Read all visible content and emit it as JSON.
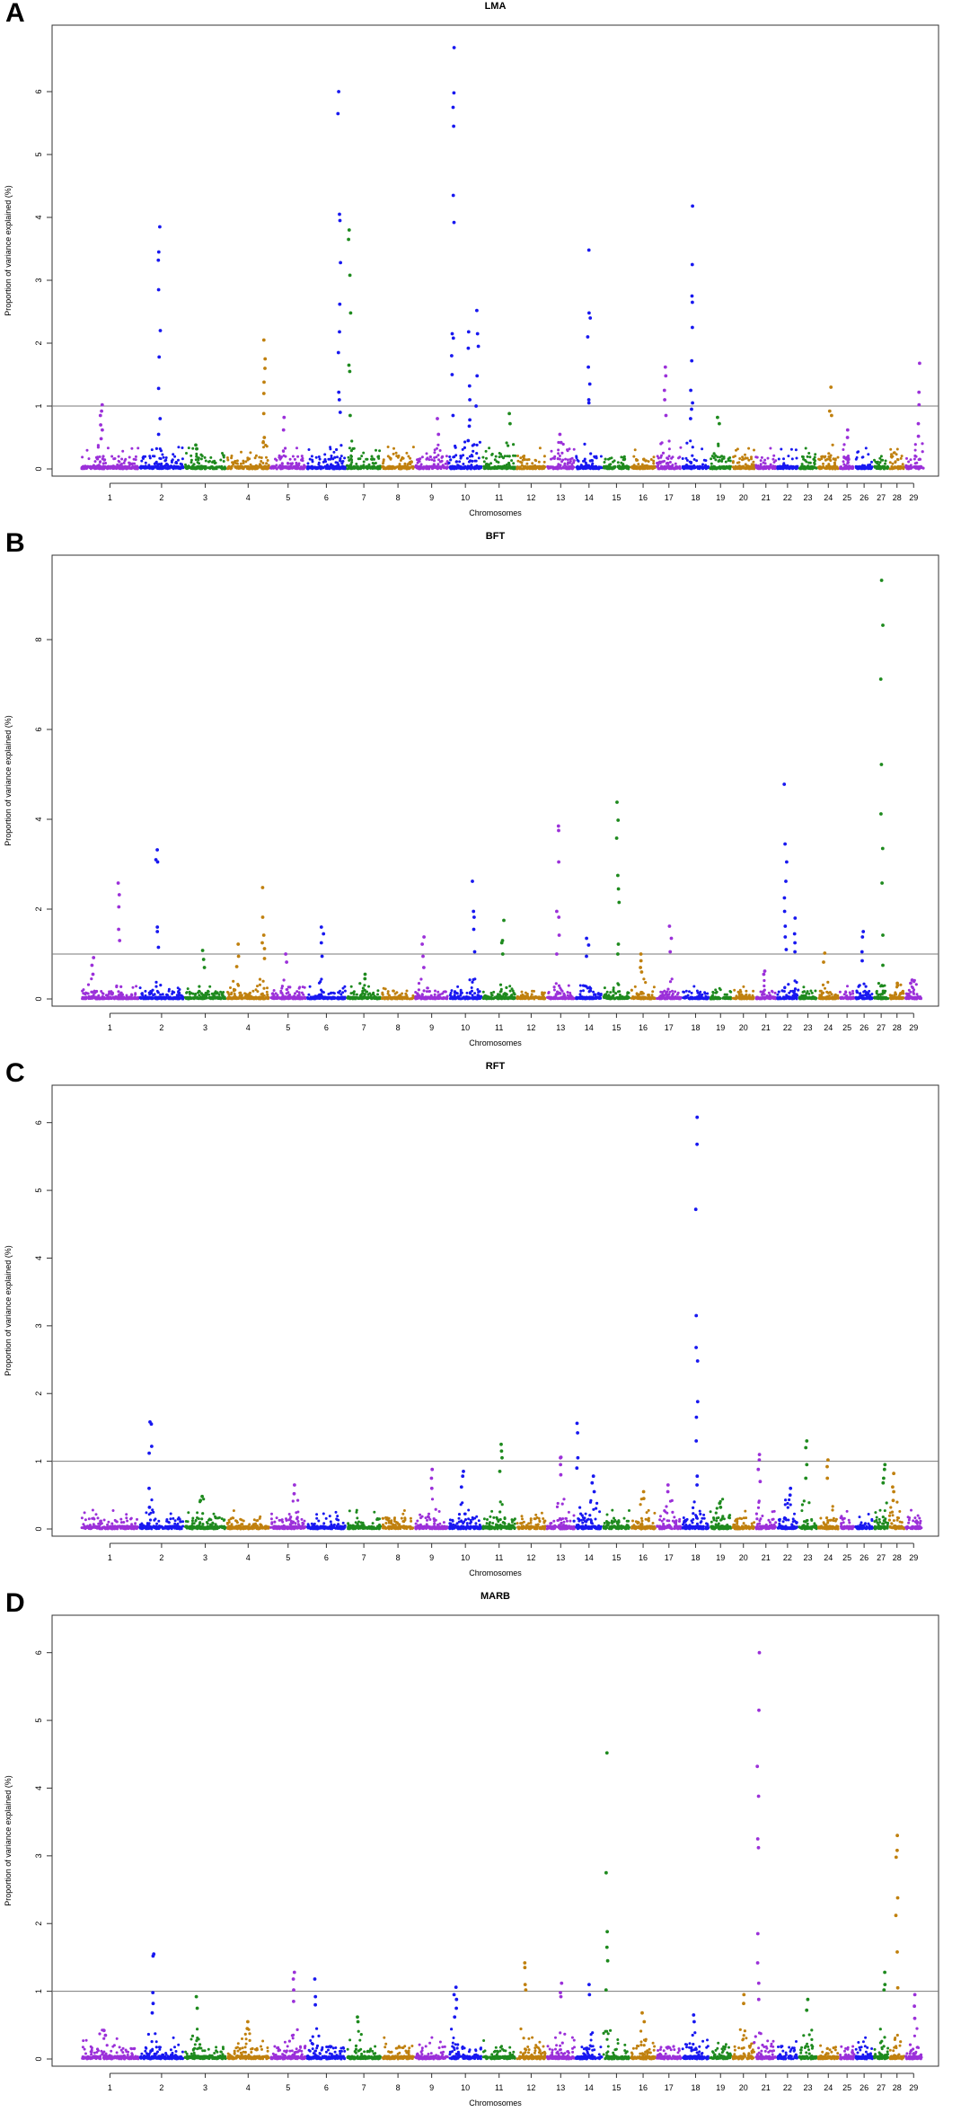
{
  "chart_data": [
    {
      "panel": "A",
      "type": "scatter",
      "title": "LMA",
      "xlabel": "Chromosomes",
      "ylabel": "Proportion of variance explained (%)",
      "ylim": [
        0,
        7
      ],
      "yticks": [
        0,
        1,
        2,
        3,
        4,
        5,
        6
      ],
      "threshold": 1,
      "chromosomes": [
        "1",
        "2",
        "3",
        "4",
        "5",
        "6",
        "7",
        "8",
        "9",
        "10",
        "11",
        "12",
        "13",
        "14",
        "15",
        "16",
        "17",
        "18",
        "19",
        "20",
        "21",
        "22",
        "23",
        "24",
        "25",
        "26",
        "27",
        "28",
        "29"
      ],
      "chromosome_sizes": [
        7.0,
        5.4,
        5.1,
        5.2,
        4.4,
        4.8,
        4.2,
        4.0,
        4.1,
        4.0,
        4.1,
        3.6,
        3.5,
        3.3,
        3.3,
        3.1,
        3.1,
        3.3,
        2.7,
        2.8,
        2.6,
        2.6,
        2.3,
        2.6,
        1.9,
        2.2,
        1.9,
        1.9,
        2.1
      ],
      "peaks": [
        {
          "chr": "1",
          "pos": 0.35,
          "values": [
            1.02,
            0.92,
            0.85,
            0.7,
            0.62,
            0.48
          ]
        },
        {
          "chr": "2",
          "pos": 0.45,
          "values": [
            3.85,
            3.45,
            3.32,
            2.85,
            2.2,
            1.78,
            1.28,
            0.8,
            0.55
          ]
        },
        {
          "chr": "3",
          "pos": 0.3,
          "values": [
            0.38,
            0.32
          ]
        },
        {
          "chr": "4",
          "pos": 0.88,
          "values": [
            2.05,
            1.75,
            1.6,
            1.38,
            1.2,
            0.88,
            0.5,
            0.42
          ]
        },
        {
          "chr": "5",
          "pos": 0.4,
          "values": [
            0.82,
            0.62
          ]
        },
        {
          "chr": "6",
          "pos": 0.82,
          "values": [
            6.0,
            5.65,
            4.05,
            3.95,
            3.28,
            2.62,
            2.18,
            1.85,
            1.22,
            1.1,
            0.9
          ]
        },
        {
          "chr": "7",
          "pos": 0.1,
          "values": [
            3.8,
            3.65,
            3.08,
            2.48,
            1.65,
            1.55,
            0.85
          ]
        },
        {
          "chr": "9",
          "pos": 0.7,
          "values": [
            0.8,
            0.55
          ]
        },
        {
          "chr": "10",
          "pos": 0.12,
          "values": [
            6.7,
            5.98,
            5.75,
            5.45,
            4.35,
            3.92,
            2.15,
            2.08,
            1.8,
            1.5,
            0.85
          ]
        },
        {
          "chr": "10",
          "pos": 0.6,
          "values": [
            2.18,
            1.92,
            1.32,
            1.1,
            0.78,
            0.68,
            0.45
          ]
        },
        {
          "chr": "10",
          "pos": 0.85,
          "values": [
            2.52,
            2.15,
            1.95,
            1.48,
            1.0
          ]
        },
        {
          "chr": "11",
          "pos": 0.8,
          "values": [
            0.88,
            0.72
          ]
        },
        {
          "chr": "13",
          "pos": 0.5,
          "values": [
            0.55,
            0.42
          ]
        },
        {
          "chr": "14",
          "pos": 0.5,
          "values": [
            3.48,
            2.48,
            2.4,
            2.1,
            1.62,
            1.35,
            1.1,
            1.05
          ]
        },
        {
          "chr": "17",
          "pos": 0.35,
          "values": [
            1.62,
            1.48,
            1.25,
            1.1,
            0.85
          ]
        },
        {
          "chr": "18",
          "pos": 0.35,
          "values": [
            4.18,
            3.25,
            2.75,
            2.65,
            2.25,
            1.72,
            1.25,
            1.05,
            0.95,
            0.8
          ]
        },
        {
          "chr": "19",
          "pos": 0.4,
          "values": [
            0.82,
            0.72
          ]
        },
        {
          "chr": "24",
          "pos": 0.6,
          "values": [
            1.3,
            0.92,
            0.85
          ]
        },
        {
          "chr": "25",
          "pos": 0.5,
          "values": [
            0.62,
            0.5
          ]
        },
        {
          "chr": "29",
          "pos": 0.8,
          "values": [
            1.68,
            1.22,
            1.02,
            0.72,
            0.52
          ]
        }
      ],
      "baseline_max": 0.35,
      "seed": 11
    },
    {
      "panel": "B",
      "type": "scatter",
      "title": "BFT",
      "xlabel": "Chromosomes",
      "ylabel": "Proportion of variance explained (%)",
      "ylim": [
        0,
        9.8
      ],
      "yticks": [
        0,
        2,
        4,
        6,
        8
      ],
      "threshold": 1,
      "chromosomes": [
        "1",
        "2",
        "3",
        "4",
        "5",
        "6",
        "7",
        "8",
        "9",
        "10",
        "11",
        "12",
        "13",
        "14",
        "15",
        "16",
        "17",
        "18",
        "19",
        "20",
        "21",
        "22",
        "23",
        "24",
        "25",
        "26",
        "27",
        "28",
        "29"
      ],
      "chromosome_sizes": [
        7.0,
        5.4,
        5.1,
        5.2,
        4.4,
        4.8,
        4.2,
        4.0,
        4.1,
        4.0,
        4.1,
        3.6,
        3.5,
        3.3,
        3.3,
        3.1,
        3.1,
        3.3,
        2.7,
        2.8,
        2.6,
        2.6,
        2.3,
        2.6,
        1.9,
        2.2,
        1.9,
        1.9,
        2.1
      ],
      "peaks": [
        {
          "chr": "1",
          "pos": 0.2,
          "values": [
            0.92,
            0.75,
            0.55
          ]
        },
        {
          "chr": "1",
          "pos": 0.65,
          "values": [
            2.58,
            2.32,
            2.05,
            1.55,
            1.3
          ]
        },
        {
          "chr": "2",
          "pos": 0.4,
          "values": [
            3.32,
            3.1,
            3.05,
            1.6,
            1.5,
            1.15
          ]
        },
        {
          "chr": "3",
          "pos": 0.45,
          "values": [
            1.08,
            0.88,
            0.7
          ]
        },
        {
          "chr": "4",
          "pos": 0.25,
          "values": [
            1.22,
            0.95,
            0.72
          ]
        },
        {
          "chr": "4",
          "pos": 0.85,
          "values": [
            2.48,
            1.82,
            1.42,
            1.25,
            1.12,
            0.9
          ]
        },
        {
          "chr": "5",
          "pos": 0.45,
          "values": [
            1.0,
            0.82
          ]
        },
        {
          "chr": "6",
          "pos": 0.4,
          "values": [
            1.6,
            1.45,
            1.25,
            0.95
          ]
        },
        {
          "chr": "7",
          "pos": 0.5,
          "values": [
            0.55,
            0.45
          ]
        },
        {
          "chr": "9",
          "pos": 0.25,
          "values": [
            1.38,
            1.22,
            0.95,
            0.7
          ]
        },
        {
          "chr": "10",
          "pos": 0.75,
          "values": [
            2.62,
            1.95,
            1.82,
            1.55,
            1.05
          ]
        },
        {
          "chr": "11",
          "pos": 0.6,
          "values": [
            1.75,
            1.3,
            1.25,
            1.0
          ]
        },
        {
          "chr": "13",
          "pos": 0.4,
          "values": [
            3.85,
            3.75,
            3.05,
            1.95,
            1.82,
            1.42,
            1.0
          ]
        },
        {
          "chr": "14",
          "pos": 0.45,
          "values": [
            1.35,
            1.2,
            0.95
          ]
        },
        {
          "chr": "15",
          "pos": 0.55,
          "values": [
            4.38,
            3.98,
            3.58,
            2.75,
            2.45,
            2.15,
            1.22,
            1.0
          ]
        },
        {
          "chr": "16",
          "pos": 0.45,
          "values": [
            1.0,
            0.85,
            0.7,
            0.6
          ]
        },
        {
          "chr": "17",
          "pos": 0.55,
          "values": [
            1.62,
            1.35,
            1.05
          ]
        },
        {
          "chr": "21",
          "pos": 0.45,
          "values": [
            0.62,
            0.55
          ]
        },
        {
          "chr": "22",
          "pos": 0.4,
          "values": [
            4.78,
            3.45,
            3.05,
            2.62,
            2.25,
            1.95,
            1.62,
            1.38,
            1.1
          ]
        },
        {
          "chr": "22",
          "pos": 0.85,
          "values": [
            1.8,
            1.45,
            1.25,
            1.05
          ]
        },
        {
          "chr": "24",
          "pos": 0.3,
          "values": [
            1.02,
            0.82
          ]
        },
        {
          "chr": "26",
          "pos": 0.45,
          "values": [
            1.5,
            1.38,
            1.05,
            0.85
          ]
        },
        {
          "chr": "27",
          "pos": 0.55,
          "values": [
            9.32,
            8.32,
            7.12,
            5.22,
            4.12,
            3.35,
            2.58,
            1.42,
            0.75
          ]
        },
        {
          "chr": "28",
          "pos": 0.6,
          "values": [
            0.35,
            0.3
          ]
        },
        {
          "chr": "29",
          "pos": 0.4,
          "values": [
            0.42,
            0.35
          ]
        }
      ],
      "baseline_max": 0.3,
      "seed": 23
    },
    {
      "panel": "C",
      "type": "scatter",
      "title": "RFT",
      "xlabel": "Chromosomes",
      "ylabel": "Proportion of variance explained (%)",
      "ylim": [
        0,
        6.5
      ],
      "yticks": [
        0,
        1,
        2,
        3,
        4,
        5,
        6
      ],
      "threshold": 1,
      "chromosomes": [
        "1",
        "2",
        "3",
        "4",
        "5",
        "6",
        "7",
        "8",
        "9",
        "10",
        "11",
        "12",
        "13",
        "14",
        "15",
        "16",
        "17",
        "18",
        "19",
        "20",
        "21",
        "22",
        "23",
        "24",
        "25",
        "26",
        "27",
        "28",
        "29"
      ],
      "chromosome_sizes": [
        7.0,
        5.4,
        5.1,
        5.2,
        4.4,
        4.8,
        4.2,
        4.0,
        4.1,
        4.0,
        4.1,
        3.6,
        3.5,
        3.3,
        3.3,
        3.1,
        3.1,
        3.3,
        2.7,
        2.8,
        2.6,
        2.6,
        2.3,
        2.6,
        1.9,
        2.2,
        1.9,
        1.9,
        2.1
      ],
      "peaks": [
        {
          "chr": "2",
          "pos": 0.25,
          "values": [
            1.58,
            1.55,
            1.22,
            1.12,
            0.6,
            0.32
          ]
        },
        {
          "chr": "3",
          "pos": 0.4,
          "values": [
            0.48,
            0.42
          ]
        },
        {
          "chr": "5",
          "pos": 0.65,
          "values": [
            0.65,
            0.52
          ]
        },
        {
          "chr": "9",
          "pos": 0.5,
          "values": [
            0.88,
            0.75,
            0.6
          ]
        },
        {
          "chr": "10",
          "pos": 0.4,
          "values": [
            0.85,
            0.78,
            0.62
          ]
        },
        {
          "chr": "11",
          "pos": 0.55,
          "values": [
            1.25,
            1.15,
            1.05,
            0.85
          ]
        },
        {
          "chr": "13",
          "pos": 0.5,
          "values": [
            1.06,
            1.05,
            0.95,
            0.8
          ]
        },
        {
          "chr": "14",
          "pos": 0.1,
          "values": [
            1.56,
            1.42,
            1.05,
            0.9
          ]
        },
        {
          "chr": "14",
          "pos": 0.65,
          "values": [
            0.78,
            0.68,
            0.55
          ]
        },
        {
          "chr": "16",
          "pos": 0.55,
          "values": [
            0.55,
            0.45
          ]
        },
        {
          "chr": "17",
          "pos": 0.5,
          "values": [
            0.65,
            0.55
          ]
        },
        {
          "chr": "18",
          "pos": 0.55,
          "values": [
            6.08,
            5.68,
            4.72,
            3.15,
            2.68,
            2.48,
            1.88,
            1.65,
            1.3,
            0.78,
            0.65
          ]
        },
        {
          "chr": "19",
          "pos": 0.5,
          "values": [
            0.38,
            0.32
          ]
        },
        {
          "chr": "21",
          "pos": 0.2,
          "values": [
            1.1,
            1.02,
            0.88,
            0.7
          ]
        },
        {
          "chr": "22",
          "pos": 0.6,
          "values": [
            0.6,
            0.5
          ]
        },
        {
          "chr": "23",
          "pos": 0.4,
          "values": [
            1.3,
            1.2,
            0.95,
            0.75
          ]
        },
        {
          "chr": "24",
          "pos": 0.5,
          "values": [
            1.02,
            0.92,
            0.75
          ]
        },
        {
          "chr": "27",
          "pos": 0.7,
          "values": [
            0.95,
            0.88,
            0.75,
            0.68
          ]
        },
        {
          "chr": "28",
          "pos": 0.3,
          "values": [
            0.82,
            0.62,
            0.55,
            0.42
          ]
        }
      ],
      "baseline_max": 0.28,
      "seed": 37
    },
    {
      "panel": "D",
      "type": "scatter",
      "title": "MARB",
      "xlabel": "Chromosomes",
      "ylabel": "Proportion of variance explained (%)",
      "ylim": [
        0,
        6.5
      ],
      "yticks": [
        0,
        1,
        2,
        3,
        4,
        5,
        6
      ],
      "threshold": 1,
      "chromosomes": [
        "1",
        "2",
        "3",
        "4",
        "5",
        "6",
        "7",
        "8",
        "9",
        "10",
        "11",
        "12",
        "13",
        "14",
        "15",
        "16",
        "17",
        "18",
        "19",
        "20",
        "21",
        "22",
        "23",
        "24",
        "25",
        "26",
        "27",
        "28",
        "29"
      ],
      "chromosome_sizes": [
        7.0,
        5.4,
        5.1,
        5.2,
        4.4,
        4.8,
        4.2,
        4.0,
        4.1,
        4.0,
        4.1,
        3.6,
        3.5,
        3.3,
        3.3,
        3.1,
        3.1,
        3.3,
        2.7,
        2.8,
        2.6,
        2.6,
        2.3,
        2.6,
        1.9,
        2.2,
        1.9,
        1.9,
        2.1
      ],
      "peaks": [
        {
          "chr": "1",
          "pos": 0.4,
          "values": [
            0.42,
            0.35
          ]
        },
        {
          "chr": "2",
          "pos": 0.3,
          "values": [
            1.55,
            1.52,
            0.98,
            0.82,
            0.68
          ]
        },
        {
          "chr": "3",
          "pos": 0.3,
          "values": [
            0.92,
            0.75
          ]
        },
        {
          "chr": "4",
          "pos": 0.5,
          "values": [
            0.55,
            0.45
          ]
        },
        {
          "chr": "5",
          "pos": 0.65,
          "values": [
            1.28,
            1.18,
            1.02,
            0.85
          ]
        },
        {
          "chr": "6",
          "pos": 0.2,
          "values": [
            1.18,
            0.92,
            0.8
          ]
        },
        {
          "chr": "7",
          "pos": 0.35,
          "values": [
            0.62,
            0.55
          ]
        },
        {
          "chr": "10",
          "pos": 0.2,
          "values": [
            1.06,
            0.95,
            0.88,
            0.75,
            0.62
          ]
        },
        {
          "chr": "12",
          "pos": 0.3,
          "values": [
            1.42,
            1.35,
            1.1,
            1.02
          ]
        },
        {
          "chr": "13",
          "pos": 0.5,
          "values": [
            1.12,
            0.98,
            0.92
          ]
        },
        {
          "chr": "14",
          "pos": 0.5,
          "values": [
            1.1,
            0.95
          ]
        },
        {
          "chr": "15",
          "pos": 0.15,
          "values": [
            4.52,
            2.75,
            1.88,
            1.65,
            1.45,
            1.02
          ]
        },
        {
          "chr": "16",
          "pos": 0.5,
          "values": [
            0.68,
            0.55
          ]
        },
        {
          "chr": "18",
          "pos": 0.45,
          "values": [
            0.65,
            0.55
          ]
        },
        {
          "chr": "20",
          "pos": 0.5,
          "values": [
            0.95,
            0.82
          ]
        },
        {
          "chr": "21",
          "pos": 0.15,
          "values": [
            6.0,
            5.15,
            4.32,
            3.88,
            3.25,
            3.12,
            1.85,
            1.42,
            1.12,
            0.88
          ]
        },
        {
          "chr": "23",
          "pos": 0.5,
          "values": [
            0.88,
            0.72
          ]
        },
        {
          "chr": "27",
          "pos": 0.7,
          "values": [
            1.28,
            1.1,
            1.02
          ]
        },
        {
          "chr": "28",
          "pos": 0.5,
          "values": [
            3.3,
            3.08,
            2.98,
            2.38,
            2.12,
            1.58,
            1.05
          ]
        },
        {
          "chr": "29",
          "pos": 0.5,
          "values": [
            0.95,
            0.78,
            0.6
          ]
        }
      ],
      "baseline_max": 0.32,
      "seed": 53
    }
  ],
  "colors": [
    "#9b30d9",
    "#1818f0",
    "#1e8a1e",
    "#c0800e"
  ],
  "threshold_color": "#7a7a7a"
}
